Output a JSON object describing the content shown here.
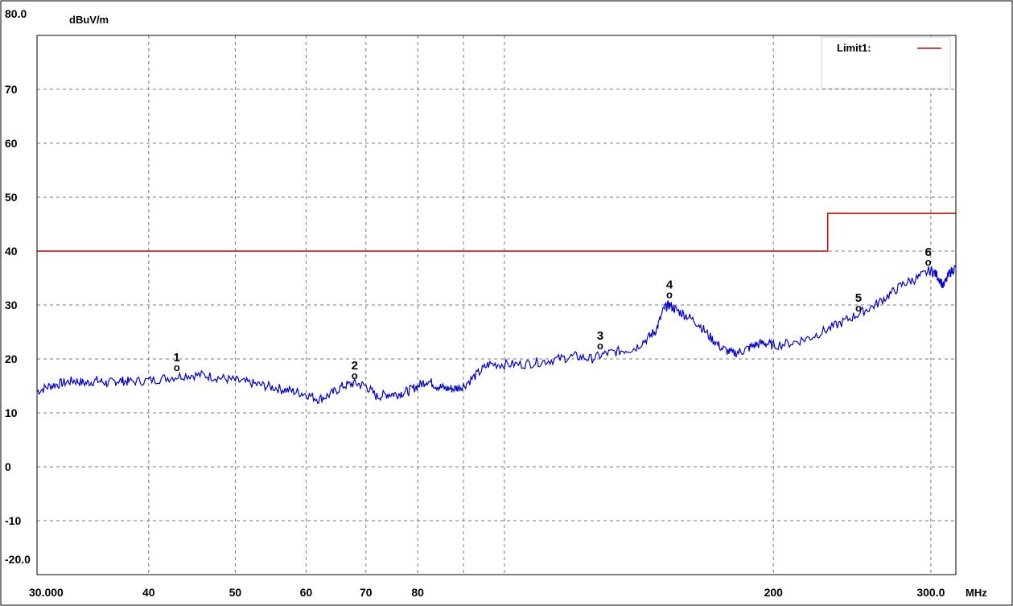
{
  "chart_data": {
    "type": "line",
    "ylabel": "dBuV/m",
    "xunit": "MHz",
    "xscale": "log",
    "xlim": [
      30,
      320
    ],
    "ylim": [
      -20,
      80
    ],
    "grid": true,
    "legend_position": "top-right",
    "y_ticks": [
      "80.0",
      "70",
      "60",
      "50",
      "40",
      "30",
      "20",
      "10",
      "0",
      "-10",
      "-20.0"
    ],
    "y_tick_values": [
      80,
      70,
      60,
      50,
      40,
      30,
      20,
      10,
      0,
      -10,
      -20
    ],
    "x_ticks": [
      "30.000",
      "40",
      "50",
      "60",
      "70",
      "80",
      "200",
      "300.0"
    ],
    "x_tick_values": [
      30,
      40,
      50,
      60,
      70,
      80,
      200,
      300
    ],
    "x_grid_values": [
      40,
      50,
      60,
      70,
      80,
      90,
      100,
      200,
      300
    ],
    "series": [
      {
        "name": "Limit1:",
        "color": "#cc0000",
        "points": [
          [
            30,
            40
          ],
          [
            230,
            40
          ],
          [
            230,
            47
          ],
          [
            320,
            47
          ]
        ]
      },
      {
        "color": "#0000cc",
        "points": [
          [
            30,
            14
          ],
          [
            31,
            15
          ],
          [
            32,
            15.5
          ],
          [
            33,
            16
          ],
          [
            34,
            15.5
          ],
          [
            35,
            16
          ],
          [
            36,
            15.5
          ],
          [
            37,
            16
          ],
          [
            38,
            15.8
          ],
          [
            40,
            16
          ],
          [
            42,
            16.5
          ],
          [
            44,
            17
          ],
          [
            46,
            17
          ],
          [
            48,
            16.5
          ],
          [
            50,
            16
          ],
          [
            52,
            15.5
          ],
          [
            54,
            15
          ],
          [
            56,
            14.5
          ],
          [
            58,
            14
          ],
          [
            60,
            13.5
          ],
          [
            62,
            12.5
          ],
          [
            64,
            13.5
          ],
          [
            66,
            15
          ],
          [
            68,
            15.5
          ],
          [
            70,
            15
          ],
          [
            72,
            13
          ],
          [
            74,
            13.5
          ],
          [
            76,
            13.5
          ],
          [
            78,
            14
          ],
          [
            80,
            15
          ],
          [
            82,
            16
          ],
          [
            84,
            15
          ],
          [
            86,
            14.5
          ],
          [
            88,
            14.5
          ],
          [
            90,
            15
          ],
          [
            93,
            17
          ],
          [
            96,
            19
          ],
          [
            100,
            19
          ],
          [
            105,
            19
          ],
          [
            110,
            19.5
          ],
          [
            115,
            20
          ],
          [
            120,
            20.5
          ],
          [
            125,
            20
          ],
          [
            130,
            21
          ],
          [
            135,
            21.5
          ],
          [
            140,
            22
          ],
          [
            145,
            24
          ],
          [
            148,
            25.5
          ],
          [
            151,
            29.5
          ],
          [
            153,
            30
          ],
          [
            156,
            29
          ],
          [
            160,
            28
          ],
          [
            165,
            26.5
          ],
          [
            170,
            24
          ],
          [
            175,
            22
          ],
          [
            180,
            21
          ],
          [
            185,
            21.5
          ],
          [
            190,
            22.5
          ],
          [
            195,
            23
          ],
          [
            200,
            22.5
          ],
          [
            210,
            23
          ],
          [
            220,
            24
          ],
          [
            230,
            25.5
          ],
          [
            240,
            27
          ],
          [
            250,
            28.5
          ],
          [
            260,
            30
          ],
          [
            270,
            32
          ],
          [
            280,
            34
          ],
          [
            290,
            35
          ],
          [
            300,
            36.5
          ],
          [
            305,
            35.5
          ],
          [
            310,
            33.5
          ],
          [
            315,
            36
          ],
          [
            320,
            37
          ]
        ]
      }
    ],
    "markers": [
      {
        "label": "1",
        "symbol": "o",
        "x": 43,
        "y": 17.5
      },
      {
        "label": "2",
        "symbol": "o",
        "x": 68,
        "y": 16
      },
      {
        "label": "3",
        "symbol": "o",
        "x": 128,
        "y": 21.5
      },
      {
        "label": "4",
        "symbol": "o",
        "x": 153,
        "y": 31
      },
      {
        "label": "5",
        "symbol": "o",
        "x": 249,
        "y": 28.5
      },
      {
        "label": "6",
        "symbol": "o",
        "x": 298,
        "y": 37
      }
    ]
  }
}
